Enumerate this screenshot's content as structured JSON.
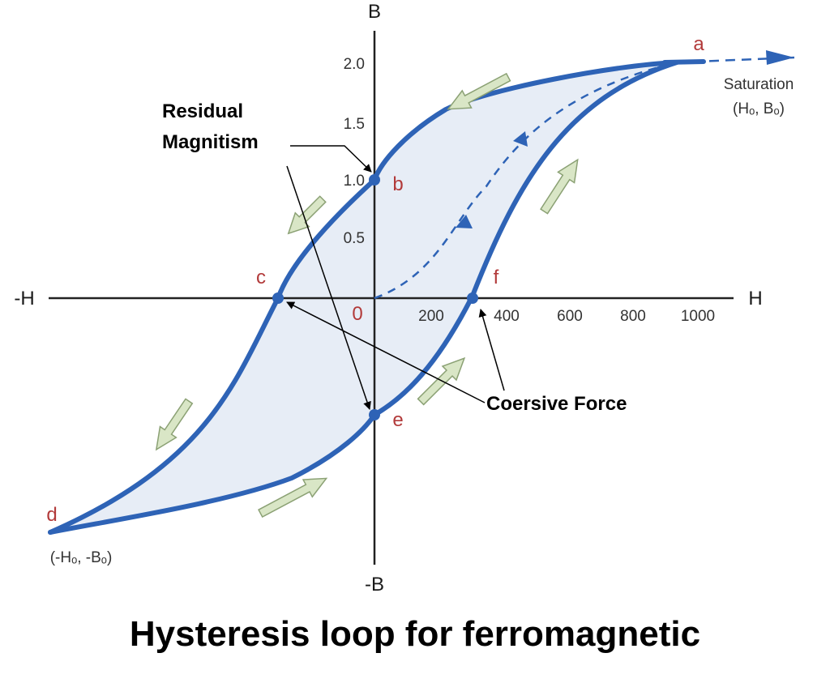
{
  "axes": {
    "y_pos": "B",
    "y_neg": "-B",
    "x_pos": "H",
    "x_neg": "-H",
    "origin": "0",
    "y_ticks": [
      "0.5",
      "1.0",
      "1.5",
      "2.0"
    ],
    "x_ticks": [
      "200",
      "400",
      "600",
      "800",
      "1000"
    ]
  },
  "points": {
    "a": "a",
    "b": "b",
    "c": "c",
    "d": "d",
    "e": "e",
    "f": "f"
  },
  "notes": {
    "saturation_line1": "Saturation",
    "saturation_line2": "(Hₒ, Bₒ)",
    "negative_saturation": "(-Hₒ, -Bₒ)"
  },
  "callouts": {
    "residual_line1": "Residual",
    "residual_line2": "Magnitism",
    "coercive": "Coersive Force"
  },
  "caption": "Hysteresis loop for ferromagnetic",
  "colors": {
    "loop": "#2e63b6",
    "fill": "#e7edf6",
    "arrow_fill": "#d9e6c6",
    "arrow_stroke": "#8ba174",
    "point_label": "#b23a3a"
  }
}
